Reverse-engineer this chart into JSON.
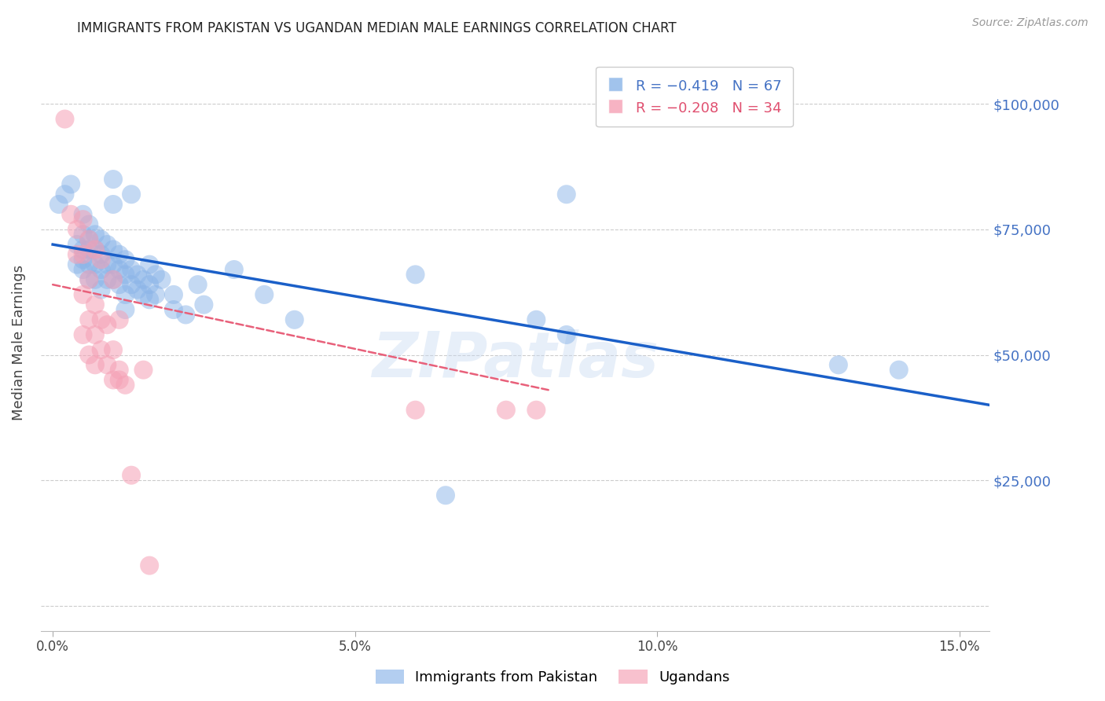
{
  "title": "IMMIGRANTS FROM PAKISTAN VS UGANDAN MEDIAN MALE EARNINGS CORRELATION CHART",
  "source": "Source: ZipAtlas.com",
  "ylabel": "Median Male Earnings",
  "xlabel_ticks": [
    "0.0%",
    "5.0%",
    "10.0%",
    "15.0%"
  ],
  "xlabel_vals": [
    0.0,
    0.05,
    0.1,
    0.15
  ],
  "ytick_vals": [
    0,
    25000,
    50000,
    75000,
    100000
  ],
  "ytick_labels": [
    "",
    "$25,000",
    "$50,000",
    "$75,000",
    "$100,000"
  ],
  "xlim": [
    -0.002,
    0.155
  ],
  "ylim": [
    -5000,
    110000
  ],
  "watermark": "ZIPatlas",
  "blue_color": "#8ab4e8",
  "pink_color": "#f5a0b5",
  "line_blue": "#1a5fc8",
  "line_pink": "#e8607a",
  "pakistan_points": [
    [
      0.001,
      80000
    ],
    [
      0.002,
      82000
    ],
    [
      0.003,
      84000
    ],
    [
      0.004,
      72000
    ],
    [
      0.004,
      68000
    ],
    [
      0.005,
      78000
    ],
    [
      0.005,
      74000
    ],
    [
      0.005,
      71000
    ],
    [
      0.005,
      69000
    ],
    [
      0.005,
      67000
    ],
    [
      0.006,
      76000
    ],
    [
      0.006,
      73000
    ],
    [
      0.006,
      71000
    ],
    [
      0.006,
      68000
    ],
    [
      0.006,
      65000
    ],
    [
      0.007,
      74000
    ],
    [
      0.007,
      71000
    ],
    [
      0.007,
      68000
    ],
    [
      0.007,
      65000
    ],
    [
      0.008,
      73000
    ],
    [
      0.008,
      70000
    ],
    [
      0.008,
      67000
    ],
    [
      0.008,
      63000
    ],
    [
      0.009,
      72000
    ],
    [
      0.009,
      68000
    ],
    [
      0.009,
      65000
    ],
    [
      0.01,
      85000
    ],
    [
      0.01,
      80000
    ],
    [
      0.01,
      71000
    ],
    [
      0.01,
      68000
    ],
    [
      0.01,
      65000
    ],
    [
      0.011,
      70000
    ],
    [
      0.011,
      67000
    ],
    [
      0.011,
      64000
    ],
    [
      0.012,
      69000
    ],
    [
      0.012,
      66000
    ],
    [
      0.012,
      62000
    ],
    [
      0.012,
      59000
    ],
    [
      0.013,
      82000
    ],
    [
      0.013,
      67000
    ],
    [
      0.013,
      64000
    ],
    [
      0.014,
      66000
    ],
    [
      0.014,
      63000
    ],
    [
      0.015,
      65000
    ],
    [
      0.015,
      62000
    ],
    [
      0.016,
      68000
    ],
    [
      0.016,
      64000
    ],
    [
      0.016,
      61000
    ],
    [
      0.017,
      66000
    ],
    [
      0.017,
      62000
    ],
    [
      0.018,
      65000
    ],
    [
      0.02,
      62000
    ],
    [
      0.02,
      59000
    ],
    [
      0.022,
      58000
    ],
    [
      0.024,
      64000
    ],
    [
      0.025,
      60000
    ],
    [
      0.03,
      67000
    ],
    [
      0.035,
      62000
    ],
    [
      0.04,
      57000
    ],
    [
      0.06,
      66000
    ],
    [
      0.065,
      22000
    ],
    [
      0.08,
      57000
    ],
    [
      0.085,
      54000
    ],
    [
      0.085,
      82000
    ],
    [
      0.13,
      48000
    ],
    [
      0.14,
      47000
    ]
  ],
  "uganda_points": [
    [
      0.002,
      97000
    ],
    [
      0.003,
      78000
    ],
    [
      0.004,
      75000
    ],
    [
      0.004,
      70000
    ],
    [
      0.005,
      77000
    ],
    [
      0.005,
      70000
    ],
    [
      0.005,
      62000
    ],
    [
      0.005,
      54000
    ],
    [
      0.006,
      73000
    ],
    [
      0.006,
      65000
    ],
    [
      0.006,
      57000
    ],
    [
      0.006,
      50000
    ],
    [
      0.007,
      71000
    ],
    [
      0.007,
      60000
    ],
    [
      0.007,
      54000
    ],
    [
      0.007,
      48000
    ],
    [
      0.008,
      69000
    ],
    [
      0.008,
      57000
    ],
    [
      0.008,
      51000
    ],
    [
      0.009,
      56000
    ],
    [
      0.009,
      48000
    ],
    [
      0.01,
      65000
    ],
    [
      0.01,
      51000
    ],
    [
      0.01,
      45000
    ],
    [
      0.011,
      57000
    ],
    [
      0.011,
      47000
    ],
    [
      0.011,
      45000
    ],
    [
      0.012,
      44000
    ],
    [
      0.013,
      26000
    ],
    [
      0.015,
      47000
    ],
    [
      0.016,
      8000
    ],
    [
      0.06,
      39000
    ],
    [
      0.075,
      39000
    ],
    [
      0.08,
      39000
    ]
  ],
  "blue_line_x": [
    0.0,
    0.155
  ],
  "blue_line_y": [
    72000,
    40000
  ],
  "pink_line_x": [
    0.0,
    0.082
  ],
  "pink_line_y": [
    64000,
    43000
  ]
}
